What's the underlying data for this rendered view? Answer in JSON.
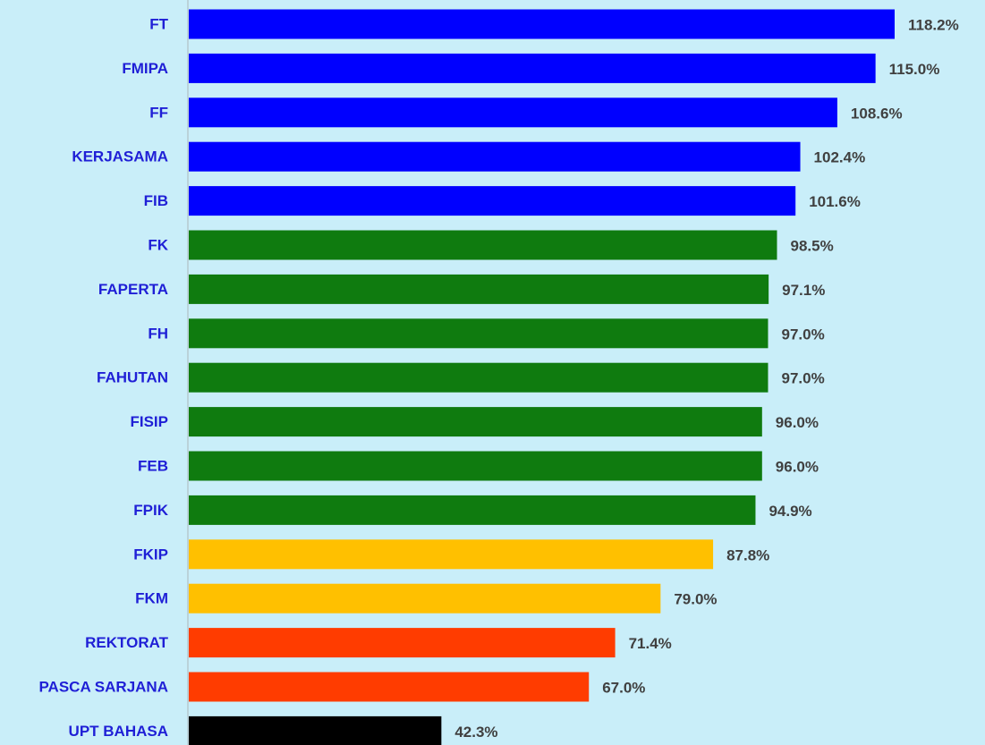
{
  "chart_data": {
    "type": "bar",
    "orientation": "horizontal",
    "categories": [
      "FT",
      "FMIPA",
      "FF",
      "KERJASAMA",
      "FIB",
      "FK",
      "FAPERTA",
      "FH",
      "FAHUTAN",
      "FISIP",
      "FEB",
      "FPIK",
      "FKIP",
      "FKM",
      "REKTORAT",
      "PASCA SARJANA",
      "UPT BAHASA"
    ],
    "values": [
      118.2,
      115.0,
      108.6,
      102.4,
      101.6,
      98.5,
      97.1,
      97.0,
      97.0,
      96.0,
      96.0,
      94.9,
      87.8,
      79.0,
      71.4,
      67.0,
      42.3
    ],
    "value_labels": [
      "118.2%",
      "115.0%",
      "108.6%",
      "102.4%",
      "101.6%",
      "98.5%",
      "97.1%",
      "97.0%",
      "97.0%",
      "96.0%",
      "96.0%",
      "94.9%",
      "87.8%",
      "79.0%",
      "71.4%",
      "67.0%",
      "42.3%"
    ],
    "colors": [
      "#0000ff",
      "#0000ff",
      "#0000ff",
      "#0000ff",
      "#0000ff",
      "#0f7b0f",
      "#0f7b0f",
      "#0f7b0f",
      "#0f7b0f",
      "#0f7b0f",
      "#0f7b0f",
      "#0f7b0f",
      "#ffc000",
      "#ffc000",
      "#ff3c00",
      "#ff3c00",
      "#000000"
    ]
  }
}
